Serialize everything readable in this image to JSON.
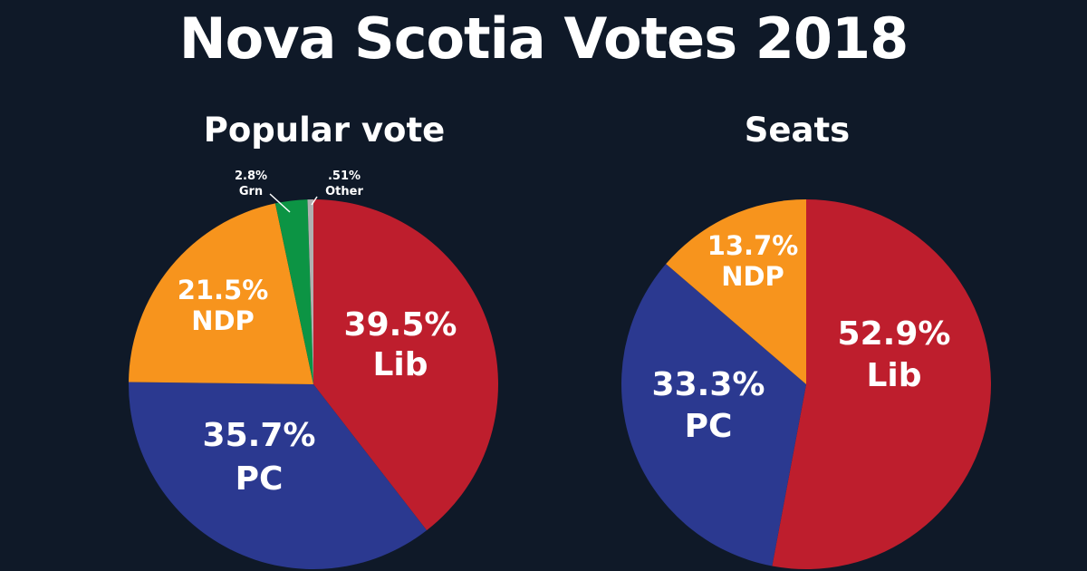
{
  "title": "Nova Scotia Votes 2018",
  "colors": {
    "background": "#0f1928",
    "Lib": "#be1e2d",
    "PC": "#2b3990",
    "NDP": "#f7941d",
    "Grn": "#0c9444",
    "Other": "#b0b0b0"
  },
  "chart_data": [
    {
      "type": "pie",
      "title": "Popular vote",
      "slices": [
        {
          "label": "Lib",
          "value": 39.5,
          "value_label": "39.5%",
          "color": "#be1e2d"
        },
        {
          "label": "PC",
          "value": 35.7,
          "value_label": "35.7%",
          "color": "#2b3990"
        },
        {
          "label": "NDP",
          "value": 21.5,
          "value_label": "21.5%",
          "color": "#f7941d"
        },
        {
          "label": "Grn",
          "value": 2.8,
          "value_label": "2.8%",
          "color": "#0c9444"
        },
        {
          "label": "Other",
          "value": 0.51,
          "value_label": ".51%",
          "color": "#b0b0b0"
        }
      ]
    },
    {
      "type": "pie",
      "title": "Seats",
      "slices": [
        {
          "label": "Lib",
          "value": 52.9,
          "value_label": "52.9%",
          "color": "#be1e2d"
        },
        {
          "label": "PC",
          "value": 33.3,
          "value_label": "33.3%",
          "color": "#2b3990"
        },
        {
          "label": "NDP",
          "value": 13.7,
          "value_label": "13.7%",
          "color": "#f7941d"
        }
      ]
    }
  ]
}
